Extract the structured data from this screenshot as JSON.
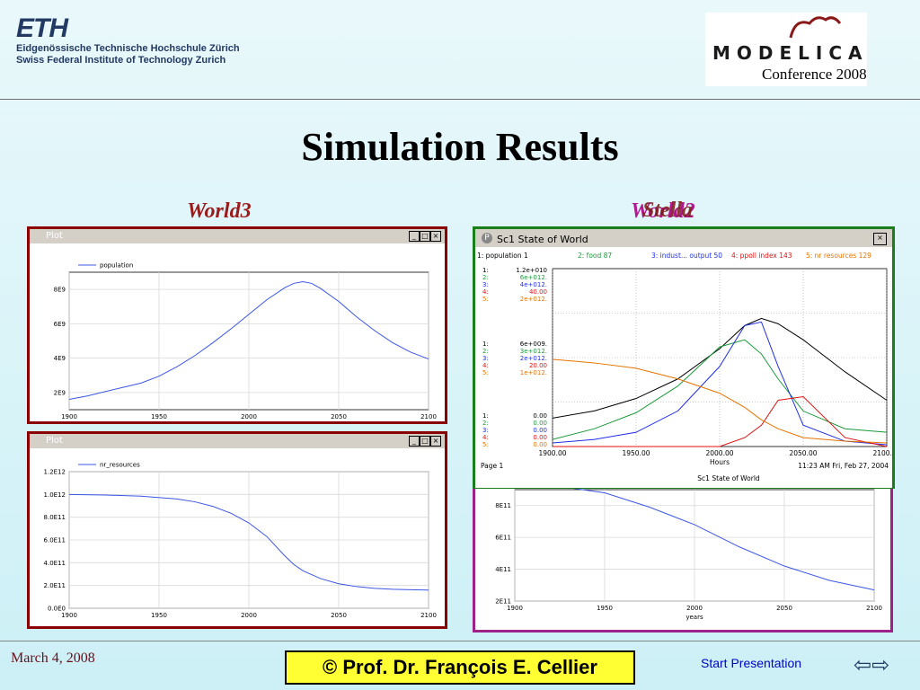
{
  "header": {
    "eth_mark": "ETH",
    "eth_line1": "Eidgenössische Technische Hochschule Zürich",
    "eth_line2": "Swiss Federal Institute of Technology Zurich",
    "modelica_mark": "MODELICA",
    "conference": "Conference 2008"
  },
  "slide_title": "Simulation Results",
  "labels": {
    "left": "World3",
    "right_back": "World2",
    "right_front": "Stella"
  },
  "footer": {
    "date": "March 4, 2008",
    "author": "©  Prof. Dr. François E. Cellier",
    "start": "Start Presentation"
  },
  "colors": {
    "world3_border": "#8b0000",
    "world2_border": "#a0208a",
    "stella_border": "#1a7f1a",
    "world3_label": "#9b1b1b",
    "world2_label": "#b01890",
    "stella_label": "#7a1a10",
    "curve": "#3b57e6",
    "series_black": "#000000",
    "series_green": "#1c9a3a",
    "series_blue": "#1f2fe6",
    "series_red": "#e01010",
    "series_orange": "#e67300"
  },
  "chart_data": [
    {
      "id": "world3-population",
      "type": "line",
      "window_title": "Plot",
      "legend": [
        "population"
      ],
      "x": [
        1900,
        1910,
        1920,
        1930,
        1940,
        1950,
        1960,
        1970,
        1980,
        1990,
        2000,
        2010,
        2020,
        2025,
        2030,
        2035,
        2040,
        2050,
        2060,
        2070,
        2080,
        2090,
        2100
      ],
      "series": [
        {
          "name": "population",
          "values": [
            1600000000.0,
            1800000000.0,
            2050000000.0,
            2300000000.0,
            2550000000.0,
            2950000000.0,
            3500000000.0,
            4150000000.0,
            4900000000.0,
            5700000000.0,
            6550000000.0,
            7400000000.0,
            8100000000.0,
            8350000000.0,
            8450000000.0,
            8350000000.0,
            8050000000.0,
            7300000000.0,
            6400000000.0,
            5600000000.0,
            4900000000.0,
            4350000000.0,
            3950000000.0
          ]
        }
      ],
      "xlim": [
        1900,
        2100
      ],
      "ylim": [
        1000000000.0,
        9000000000.0
      ],
      "xticks": [
        1900,
        1950,
        2000,
        2050,
        2100
      ],
      "yticks": [
        2000000000.0,
        4000000000.0,
        6000000000.0,
        8000000000.0
      ],
      "yticklabels": [
        "2E9",
        "4E9",
        "6E9",
        "8E9"
      ],
      "grid": true
    },
    {
      "id": "world3-resources",
      "type": "line",
      "window_title": "Plot",
      "legend": [
        "nr_resources"
      ],
      "x": [
        1900,
        1920,
        1940,
        1960,
        1970,
        1980,
        1990,
        2000,
        2010,
        2020,
        2025,
        2030,
        2040,
        2050,
        2060,
        2070,
        2080,
        2090,
        2100
      ],
      "series": [
        {
          "name": "nr_resources",
          "values": [
            1000000000000.0,
            995000000000.0,
            985000000000.0,
            960000000000.0,
            935000000000.0,
            895000000000.0,
            835000000000.0,
            750000000000.0,
            630000000000.0,
            460000000000.0,
            385000000000.0,
            330000000000.0,
            260000000000.0,
            215000000000.0,
            190000000000.0,
            175000000000.0,
            167000000000.0,
            163000000000.0,
            160000000000.0
          ]
        }
      ],
      "xlim": [
        1900,
        2100
      ],
      "ylim": [
        0,
        1200000000000.0
      ],
      "xticks": [
        1900,
        1950,
        2000,
        2050,
        2100
      ],
      "yticks": [
        0,
        200000000000.0,
        400000000000.0,
        600000000000.0,
        800000000000.0,
        1000000000000.0,
        1200000000000.0
      ],
      "yticklabels": [
        "0.0E0",
        "2.0E11",
        "4.0E11",
        "6.0E11",
        "8.0E11",
        "1.0E12",
        "1.2E12"
      ],
      "grid": true
    },
    {
      "id": "world2-resources",
      "type": "line",
      "x": [
        1900,
        1925,
        1950,
        1975,
        2000,
        2025,
        2050,
        2075,
        2100
      ],
      "series": [
        {
          "name": "",
          "values": [
            950000000000.0,
            920000000000.0,
            880000000000.0,
            790000000000.0,
            680000000000.0,
            540000000000.0,
            420000000000.0,
            330000000000.0,
            270000000000.0
          ]
        }
      ],
      "xlim": [
        1900,
        2100
      ],
      "ylim": [
        200000000000.0,
        900000000000.0
      ],
      "xticks": [
        1900,
        1950,
        2000,
        2050,
        2100
      ],
      "yticks": [
        200000000000.0,
        400000000000.0,
        600000000000.0,
        800000000000.0
      ],
      "yticklabels": [
        "2E11",
        "4E11",
        "6E11",
        "8E11"
      ],
      "xlabel": "years",
      "grid": true
    },
    {
      "id": "stella-state-of-world",
      "type": "line",
      "window_title": "Sc1 State of World",
      "header_items": [
        "1: population 1",
        "2: food 87",
        "3: indust... output 50",
        "4: ppoll index 143",
        "5: nr resources 129"
      ],
      "scale_top": [
        "1.2e+010",
        "6e+012.",
        "4e+012.",
        "40.00",
        "2e+012."
      ],
      "scale_mid": [
        "6e+009.",
        "3e+012.",
        "2e+012.",
        "20.00",
        "1e+012."
      ],
      "scale_bot": [
        "0.00",
        "0.00",
        "0.00",
        "0.00",
        "0.00"
      ],
      "x": [
        1900,
        1925,
        1950,
        1975,
        2000,
        2015,
        2025,
        2035,
        2050,
        2075,
        2100
      ],
      "series": [
        {
          "name": "population",
          "values": [
            0.16,
            0.2,
            0.27,
            0.38,
            0.55,
            0.68,
            0.72,
            0.69,
            0.6,
            0.42,
            0.26
          ]
        },
        {
          "name": "food",
          "values": [
            0.04,
            0.1,
            0.19,
            0.34,
            0.56,
            0.6,
            0.52,
            0.38,
            0.2,
            0.1,
            0.08
          ]
        },
        {
          "name": "indust... output",
          "values": [
            0.02,
            0.04,
            0.08,
            0.2,
            0.45,
            0.68,
            0.7,
            0.45,
            0.12,
            0.03,
            0.01
          ]
        },
        {
          "name": "ppoll index",
          "values": [
            0.0,
            0.0,
            0.0,
            0.0,
            0.0,
            0.05,
            0.12,
            0.26,
            0.28,
            0.05,
            0.0
          ]
        },
        {
          "name": "nr resources",
          "values": [
            0.49,
            0.47,
            0.44,
            0.38,
            0.3,
            0.22,
            0.15,
            0.1,
            0.05,
            0.03,
            0.02
          ]
        }
      ],
      "xlim": [
        1900,
        2100
      ],
      "xticks": [
        1900,
        1950,
        2000,
        2050,
        2100
      ],
      "xticklabels": [
        "1900.00",
        "1950.00",
        "2000.00",
        "2050.00",
        "2100.00"
      ],
      "xlabel": "Hours",
      "footer_left": "Page 1",
      "footer_center": "Sc1 State of World",
      "footer_right": "11:23 AM  Fri, Feb 27, 2004",
      "grid": true
    }
  ]
}
